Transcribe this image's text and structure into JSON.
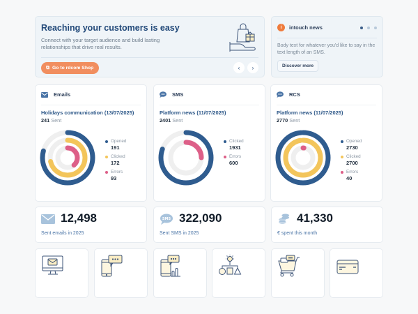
{
  "hero": {
    "title": "Reaching your customers is easy",
    "description": "Connect with your target audience and build lasting relationships that drive real results.",
    "shop_button": "Go to rdcom Shop",
    "prev_label": "‹",
    "next_label": "›"
  },
  "news": {
    "logo_letter": "i",
    "title": "intouch news",
    "body": "Body text for whatever you'd like to say in the text length of an SMS.",
    "button": "Discover more",
    "slides": 3,
    "active_slide": 1
  },
  "colors": {
    "opened": "#2f5c8f",
    "clicked": "#f3c55b",
    "errors": "#dd5f88",
    "track": "#efefef",
    "accent": "#f18e5f"
  },
  "stats": [
    {
      "channel": "Emails",
      "campaign": "Holidays communication (13/07/2025)",
      "sent": 241,
      "sent_label": "Sent",
      "metrics": [
        {
          "key": "opened",
          "label": "Opened",
          "value": 191
        },
        {
          "key": "clicked",
          "label": "Clicked",
          "value": 172
        },
        {
          "key": "errors",
          "label": "Errors",
          "value": 93
        }
      ]
    },
    {
      "channel": "SMS",
      "campaign": "Platform news (11/07/2025)",
      "sent": 2401,
      "sent_label": "Sent",
      "metrics": [
        {
          "key": "opened",
          "label": "Clicked",
          "value": 1931
        },
        {
          "key": "errors",
          "label": "Errors",
          "value": 600
        }
      ]
    },
    {
      "channel": "RCS",
      "campaign": "Platform news (11/07/2025)",
      "sent": 2770,
      "sent_label": "Sent",
      "metrics": [
        {
          "key": "opened",
          "label": "Opened",
          "value": 2730
        },
        {
          "key": "clicked",
          "label": "Clicked",
          "value": 2700
        },
        {
          "key": "errors",
          "label": "Errors",
          "value": 40
        }
      ]
    }
  ],
  "kpis": [
    {
      "value": "12,498",
      "label": "Sent emails in 2025",
      "icon": "envelope-icon"
    },
    {
      "value": "322,090",
      "label": "Sent SMS in 2025",
      "icon": "sms-bubble-icon"
    },
    {
      "value": "41,330",
      "label": "€ spent this month",
      "icon": "coins-icon"
    }
  ],
  "tiles": [
    {
      "icon": "monitor-email-icon"
    },
    {
      "icon": "phone-message-icon"
    },
    {
      "icon": "phone-chart-icon"
    },
    {
      "icon": "idea-workflow-icon"
    },
    {
      "icon": "shopping-cart-icon"
    },
    {
      "icon": "credit-card-icon"
    }
  ]
}
